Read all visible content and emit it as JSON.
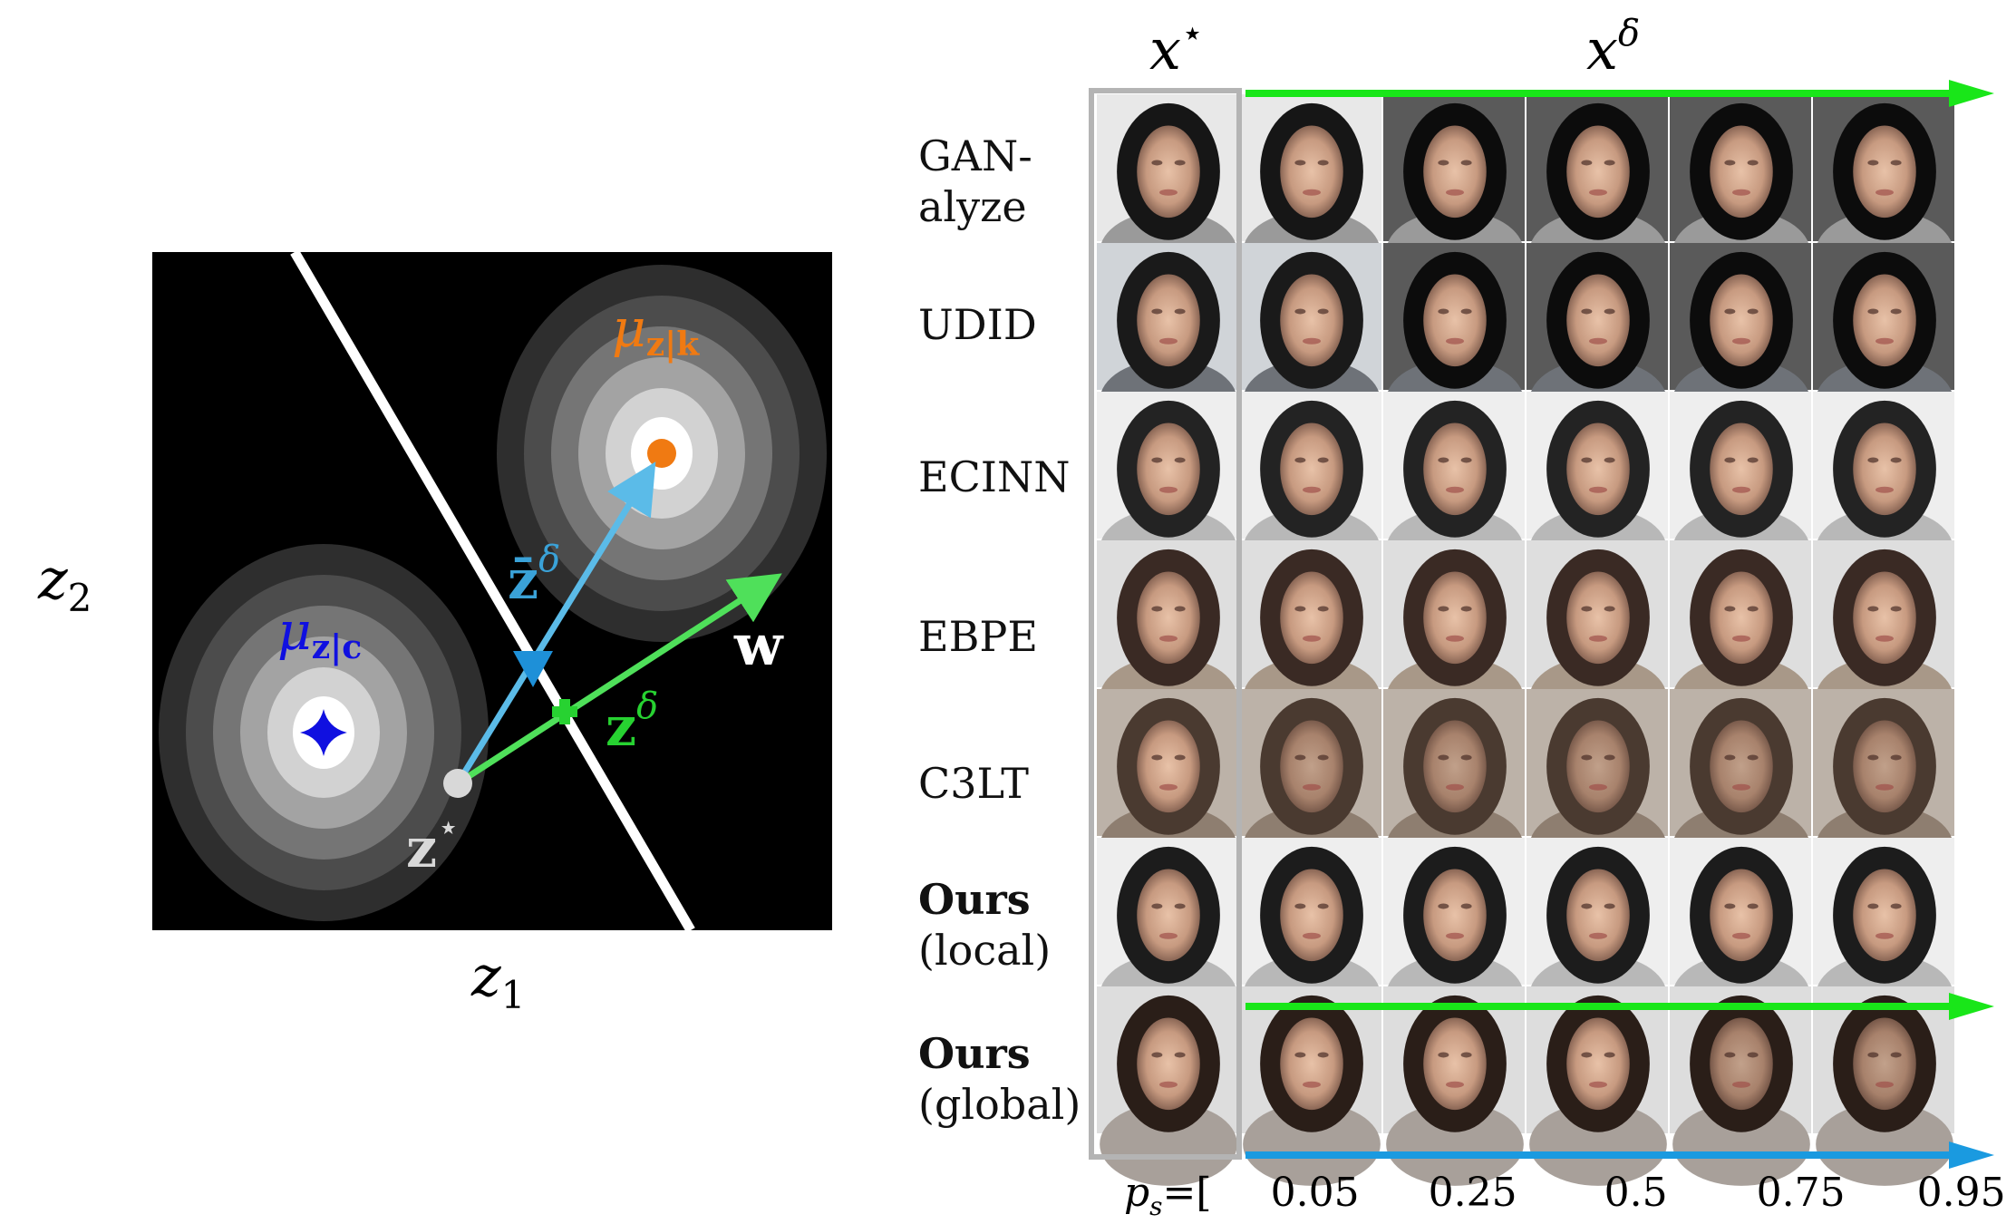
{
  "left_panel": {
    "axis_x_label": "z",
    "axis_x_sub": "1",
    "axis_y_label": "z",
    "axis_y_sub": "2",
    "mu_k_label": "μ",
    "mu_k_sub": "z|k",
    "mu_c_label": "μ",
    "mu_c_sub": "z|c",
    "zbar_label": "z̄",
    "zbar_sup": "δ",
    "zdelta_label": "z",
    "zdelta_sup": "δ",
    "zstar_label": "z",
    "zstar_sup": "⋆",
    "w_label": "w",
    "colors": {
      "background": "#000000",
      "boundary": "#ffffff",
      "mu_k": "#f07a12",
      "mu_c": "#1010e0",
      "zbar_arrow": "#5bbbe8",
      "zdelta_arrow": "#4fe05a",
      "zstar": "#d8d8d8"
    }
  },
  "right_panel": {
    "header_xstar": "x",
    "header_xstar_sup": "⋆",
    "header_xdelta": "x",
    "header_xdelta_sup": "δ",
    "rows": [
      {
        "label_line1": "GAN-",
        "label_line2": "alyze",
        "bold": false
      },
      {
        "label_line1": "UDID",
        "label_line2": "",
        "bold": false
      },
      {
        "label_line1": "ECINN",
        "label_line2": "",
        "bold": false
      },
      {
        "label_line1": "EBPE",
        "label_line2": "",
        "bold": false
      },
      {
        "label_line1": "C3LT",
        "label_line2": "",
        "bold": false
      },
      {
        "label_line1": "Ours",
        "label_line2": "(local)",
        "bold": true
      },
      {
        "label_line1": "Ours",
        "label_line2": "(global)",
        "bold": true
      }
    ],
    "ps_label": "p",
    "ps_sub": "s",
    "ps_eq": " =[",
    "ps_values": [
      "0.05",
      "0.25",
      "0.5",
      "0.75",
      "0.95"
    ],
    "ps_close": "]",
    "colors": {
      "top_arrow": "#19e619",
      "local_arrow": "#19e619",
      "global_arrow": "#1a9ae0",
      "xstar_frame": "#b4b4b4"
    }
  }
}
